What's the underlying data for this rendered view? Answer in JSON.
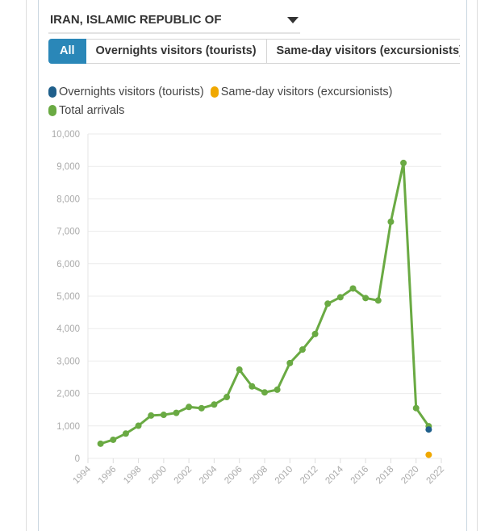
{
  "selector": {
    "value": "IRAN, ISLAMIC REPUBLIC OF",
    "icon": "caret-down-icon"
  },
  "tabs": [
    {
      "label": "All",
      "active": true
    },
    {
      "label": "Overnights visitors (tourists)",
      "active": false
    },
    {
      "label": "Same-day visitors (excursionists)",
      "active": false
    }
  ],
  "legend": [
    {
      "label": "Overnights visitors (tourists)",
      "color": "#1f5f8b"
    },
    {
      "label": "Same-day visitors (excursionists)",
      "color": "#f0a800"
    },
    {
      "label": "Total arrivals",
      "color": "#6aaa43"
    }
  ],
  "chart_data": {
    "type": "line",
    "ylim": [
      0,
      10000
    ],
    "xlim": [
      1994,
      2022
    ],
    "y_ticks": [
      "0",
      "1,000",
      "2,000",
      "3,000",
      "4,000",
      "5,000",
      "6,000",
      "7,000",
      "8,000",
      "9,000",
      "10,000"
    ],
    "x_ticks": [
      "1994",
      "1996",
      "1998",
      "2000",
      "2002",
      "2004",
      "2006",
      "2008",
      "2010",
      "2012",
      "2014",
      "2016",
      "2018",
      "2020",
      "2022"
    ],
    "grid": true,
    "legend_position": "top-left",
    "series": [
      {
        "name": "Total arrivals",
        "color": "#6aaa43",
        "x": [
          1995,
          1996,
          1997,
          1998,
          1999,
          2000,
          2001,
          2002,
          2003,
          2004,
          2005,
          2006,
          2007,
          2008,
          2009,
          2010,
          2011,
          2012,
          2013,
          2014,
          2015,
          2016,
          2017,
          2018,
          2019,
          2020,
          2021
        ],
        "values": [
          452,
          573,
          764,
          1007,
          1321,
          1342,
          1402,
          1585,
          1546,
          1659,
          1889,
          2735,
          2220,
          2034,
          2116,
          2938,
          3354,
          3834,
          4769,
          4967,
          5237,
          4942,
          4867,
          7295,
          9107,
          1550,
          991
        ]
      },
      {
        "name": "Overnights visitors (tourists)",
        "color": "#1f5f8b",
        "x": [
          2021
        ],
        "values": [
          890
        ]
      },
      {
        "name": "Same-day visitors (excursionists)",
        "color": "#f0a800",
        "x": [
          2021
        ],
        "values": [
          110
        ]
      }
    ]
  }
}
